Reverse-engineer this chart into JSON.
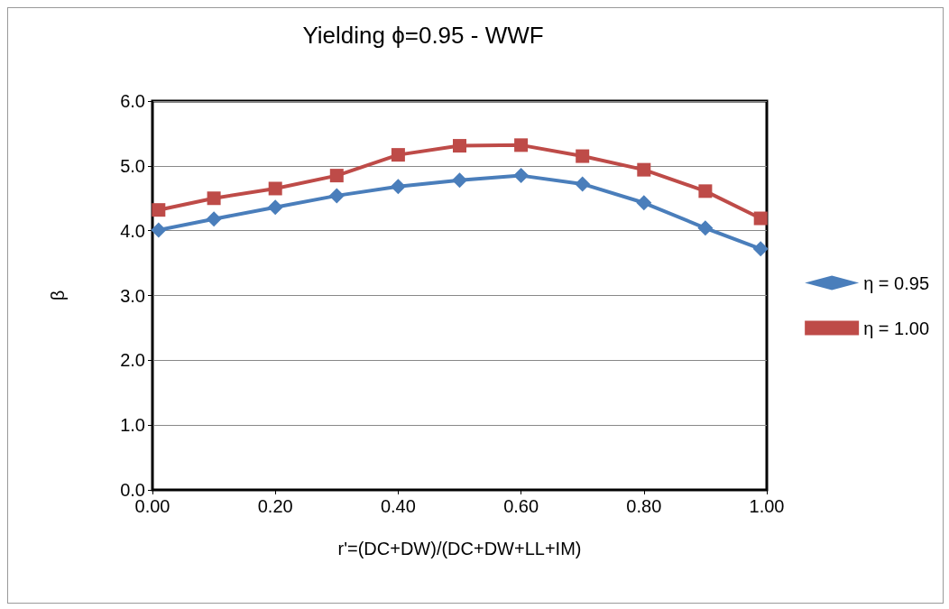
{
  "chart_data": {
    "type": "line",
    "title": "Yielding ϕ=0.95 - WWF",
    "xlabel": "r'=(DC+DW)/(DC+DW+LL+IM)",
    "ylabel": "β",
    "x": [
      0.01,
      0.1,
      0.2,
      0.3,
      0.4,
      0.5,
      0.6,
      0.7,
      0.8,
      0.9,
      0.99
    ],
    "series": [
      {
        "name": "η = 0.95",
        "color": "#4a7ebb",
        "marker": "diamond",
        "values": [
          4.01,
          4.18,
          4.36,
          4.54,
          4.68,
          4.78,
          4.85,
          4.72,
          4.43,
          4.04,
          3.72
        ]
      },
      {
        "name": "η = 1.00",
        "color": "#be4b48",
        "marker": "square",
        "values": [
          4.32,
          4.5,
          4.65,
          4.85,
          5.17,
          5.31,
          5.32,
          5.15,
          4.94,
          4.61,
          4.19
        ]
      }
    ],
    "xlim": [
      0,
      1
    ],
    "xticks": [
      {
        "value": 0,
        "label": "0.00"
      },
      {
        "value": 0.2,
        "label": "0.20"
      },
      {
        "value": 0.4,
        "label": "0.40"
      },
      {
        "value": 0.6,
        "label": "0.60"
      },
      {
        "value": 0.8,
        "label": "0.80"
      },
      {
        "value": 1,
        "label": "1.00"
      }
    ],
    "ylim": [
      0,
      6
    ],
    "yticks": [
      {
        "value": 0,
        "label": "0.0"
      },
      {
        "value": 1,
        "label": "1.0"
      },
      {
        "value": 2,
        "label": "2.0"
      },
      {
        "value": 3,
        "label": "3.0"
      },
      {
        "value": 4,
        "label": "4.0"
      },
      {
        "value": 5,
        "label": "5.0"
      },
      {
        "value": 6,
        "label": "6.0"
      }
    ],
    "grid": "y",
    "legend": "right",
    "line_style": "solid"
  }
}
